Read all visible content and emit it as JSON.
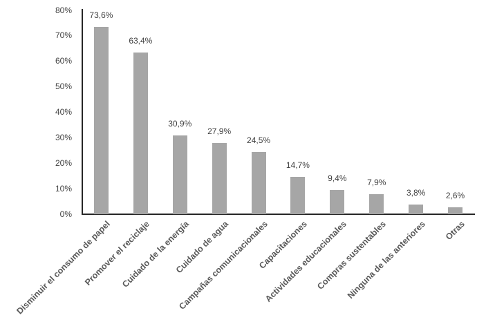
{
  "chart_data": {
    "type": "bar",
    "title": "",
    "xlabel": "",
    "ylabel": "",
    "categories": [
      "Disminuir el consumo de papel",
      "Promover el reciclaje",
      "Cuidado de la energía",
      "Cuidado de agua",
      "Campañas comunicacionales",
      "Capacitaciones",
      "Actividades educacionales",
      "Compras sustentables",
      "Ninguna de las anteriores",
      "Otras"
    ],
    "values": [
      73.6,
      63.4,
      30.9,
      27.9,
      24.5,
      14.7,
      9.4,
      7.9,
      3.8,
      2.6
    ],
    "value_labels": [
      "73,6%",
      "63,4%",
      "30,9%",
      "27,9%",
      "24,5%",
      "14,7%",
      "9,4%",
      "7,9%",
      "3,8%",
      "2,6%"
    ],
    "ylim": [
      0,
      80
    ],
    "ytick_step": 10,
    "ytick_labels": [
      "0%",
      "10%",
      "20%",
      "30%",
      "40%",
      "50%",
      "60%",
      "70%",
      "80%"
    ],
    "grid": false,
    "legend": false,
    "bar_color": "#a6a6a6",
    "axis_color": "#262626",
    "tick_label_color": "#404040",
    "category_label_color": "#595959"
  }
}
